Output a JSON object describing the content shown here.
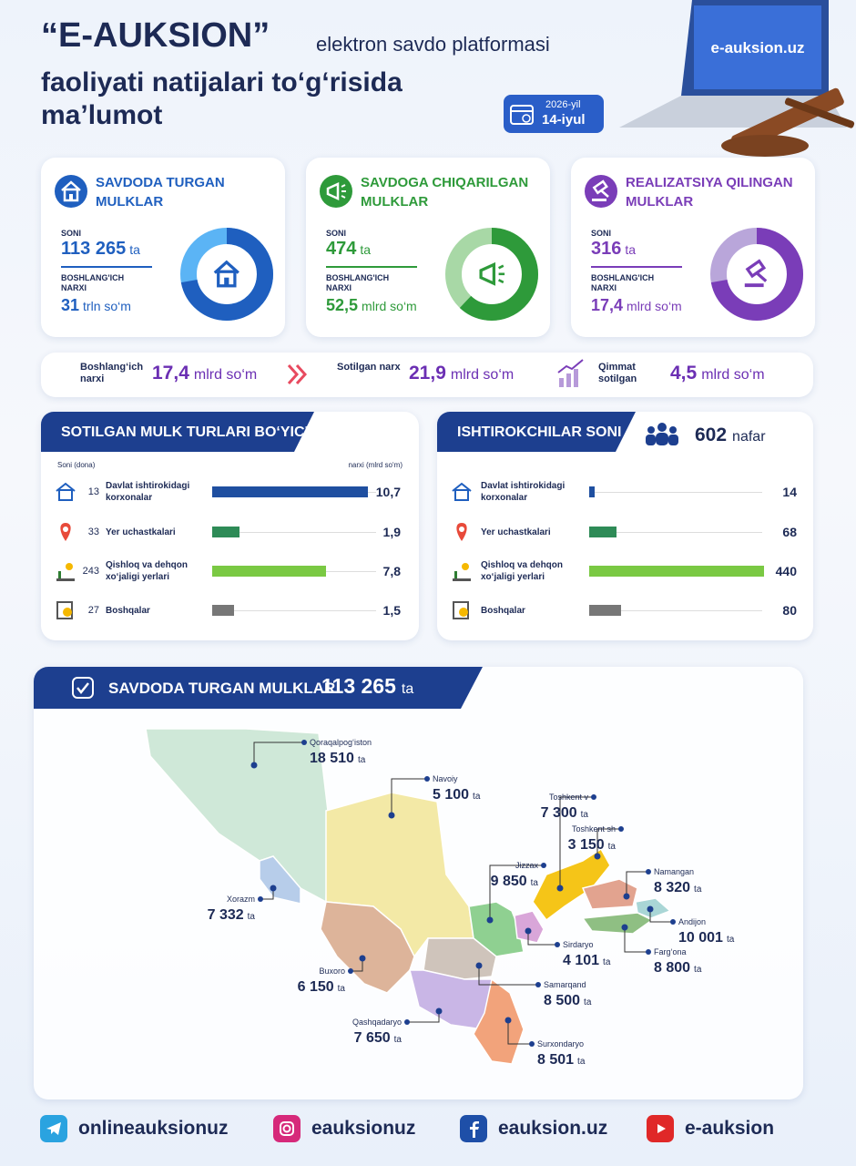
{
  "header": {
    "brand": "“E-AUKSION”",
    "brand_rest": "elektron savdo platformasi",
    "subtitle": [
      "faoliyati natijalari to‘g‘risida",
      "ma’lumot"
    ],
    "date_year": "2026-yil",
    "date_day": "14-iyul",
    "laptop_text": "e-auksion.uz"
  },
  "cards": [
    {
      "title": "SAVDODA TURGAN MULKLAR",
      "count_label": "SONI",
      "count": "113 265",
      "count_unit": "ta",
      "price_label": "BOSHLANG'ICH NARXI",
      "price": "31",
      "price_unit": "trln so‘m"
    },
    {
      "title": "SAVDOGA CHIQARILGAN MULKLAR",
      "count_label": "SONI",
      "count": "474",
      "count_unit": "ta",
      "price_label": "BOSHLANG'ICH NARXI",
      "price": "52,5",
      "price_unit": "mlrd so‘m"
    },
    {
      "title": "REALIZATSIYA QILINGAN MULKLAR",
      "count_label": "SONI",
      "count": "316",
      "count_unit": "ta",
      "price_label": "BOSHLANG'ICH NARXI",
      "price": "17,4",
      "price_unit": "mlrd so‘m"
    }
  ],
  "summary": [
    {
      "label": "Boshlang‘ich narxi",
      "value": "17,4",
      "unit": "mlrd so‘m"
    },
    {
      "label": "Sotilgan narx",
      "value": "21,9",
      "unit": "mlrd so‘m"
    },
    {
      "label": "Qimmat sotilgan",
      "value": "4,5",
      "unit": "mlrd so‘m"
    }
  ],
  "sold_types": {
    "title": "SOTILGAN MULK TURLARI BO‘YICHA",
    "count_header": "Soni (dona)",
    "price_header": "narxi (mlrd so‘m)",
    "counts": [
      "13",
      "33",
      "243",
      "27"
    ],
    "categories": [
      "Davlat ishtirokidagi korxonalar",
      "Yer uchastkalari",
      "Qishloq va dehqon xo‘jaligi yerlari",
      "Boshqalar"
    ],
    "values": [
      10.7,
      1.9,
      7.8,
      1.5
    ],
    "value_labels": [
      "10,7",
      "1,9",
      "7,8",
      "1,5"
    ]
  },
  "participants": {
    "title": "ISHTIROKCHILAR SONI",
    "total": "602",
    "total_unit": "nafar",
    "categories": [
      "Davlat ishtirokidagi korxonalar",
      "Yer uchastkalari",
      "Qishloq va dehqon xo‘jaligi yerlari",
      "Boshqalar"
    ],
    "values": [
      14,
      68,
      440,
      80
    ]
  },
  "map": {
    "title": "SAVDODA TURGAN MULKLAR",
    "total": "113 265",
    "total_unit": "ta",
    "regions": [
      {
        "name": "Qoraqalpog‘iston",
        "value": "18 510",
        "unit": "ta"
      },
      {
        "name": "Navoiy",
        "value": "5 100",
        "unit": "ta"
      },
      {
        "name": "Toshkent v",
        "value": "7 300",
        "unit": "ta"
      },
      {
        "name": "Toshkent sh",
        "value": "3 150",
        "unit": "ta"
      },
      {
        "name": "Jizzax",
        "value": "9 850",
        "unit": "ta"
      },
      {
        "name": "Namangan",
        "value": "8 320",
        "unit": "ta"
      },
      {
        "name": "Xorazm",
        "value": "7 332",
        "unit": "ta"
      },
      {
        "name": "Andijon",
        "value": "10 001",
        "unit": "ta"
      },
      {
        "name": "Sirdaryo",
        "value": "4 101",
        "unit": "ta"
      },
      {
        "name": "Farg‘ona",
        "value": "8 800",
        "unit": "ta"
      },
      {
        "name": "Buxoro",
        "value": "6 150",
        "unit": "ta"
      },
      {
        "name": "Samarqand",
        "value": "8 500",
        "unit": "ta"
      },
      {
        "name": "Qashqadaryo",
        "value": "7 650",
        "unit": "ta"
      },
      {
        "name": "Surxondaryo",
        "value": "8 501",
        "unit": "ta"
      }
    ]
  },
  "footer": [
    "onlineauksionuz",
    "eauksionuz",
    "eauksion.uz",
    "e-auksion"
  ]
}
